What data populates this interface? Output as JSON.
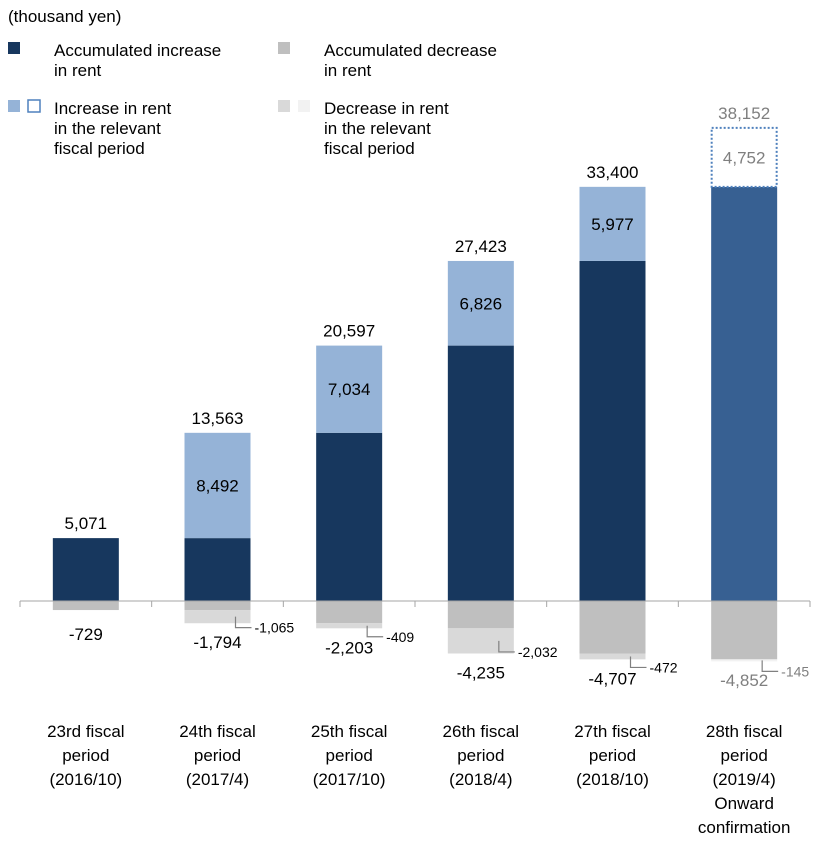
{
  "chart_data": {
    "type": "bar",
    "stacked": true,
    "unit_label": "(thousand yen)",
    "categories": [
      [
        "23rd fiscal",
        "period",
        "(2016/10)"
      ],
      [
        "24th fiscal",
        "period",
        "(2017/4)"
      ],
      [
        "25th fiscal",
        "period",
        "(2017/10)"
      ],
      [
        "26th fiscal",
        "period",
        "(2018/4)"
      ],
      [
        "27th fiscal",
        "period",
        "(2018/10)"
      ],
      [
        "28th fiscal",
        "period",
        "(2019/4)",
        "Onward",
        "confirmation"
      ]
    ],
    "legend": [
      {
        "label": [
          "Accumulated increase",
          "in rent"
        ],
        "colors": [
          "#17375e"
        ]
      },
      {
        "label": [
          "Accumulated decrease",
          "in rent"
        ],
        "colors": [
          "#bfbfbf"
        ]
      },
      {
        "label": [
          "Increase in rent",
          "in the relevant",
          "fiscal period"
        ],
        "colors": [
          "#95b3d7",
          "#ffffff"
        ],
        "second_outline": "#4f81bd"
      },
      {
        "label": [
          "Decrease in rent",
          "in the relevant",
          "fiscal period"
        ],
        "colors": [
          "#d9d9d9",
          "#f2f2f2"
        ]
      }
    ],
    "series": [
      {
        "key": "accumulated_increase",
        "values": [
          5071,
          5071,
          13563,
          20597,
          27423,
          33400
        ]
      },
      {
        "key": "period_increase",
        "values": [
          null,
          8492,
          7034,
          6826,
          5977,
          4752
        ]
      },
      {
        "key": "accumulated_decrease",
        "values": [
          -729,
          -729,
          -1794,
          -2203,
          -4235,
          -4707
        ]
      },
      {
        "key": "period_decrease",
        "values": [
          null,
          -1065,
          -409,
          -2032,
          -472,
          -145
        ]
      }
    ],
    "increase_totals": [
      5071,
      13563,
      20597,
      27423,
      33400,
      38152
    ],
    "decrease_totals": [
      -729,
      -1794,
      -2203,
      -4235,
      -4707,
      -4852
    ],
    "increase_labels": [
      "",
      "8,492",
      "7,034",
      "6,826",
      "5,977",
      "4,752"
    ],
    "decrease_labels": [
      "",
      "-1,065",
      "-409",
      "-2,032",
      "-472",
      "-145"
    ],
    "increase_total_labels": [
      "5,071",
      "13,563",
      "20,597",
      "27,423",
      "33,400",
      "38,152"
    ],
    "decrease_total_labels": [
      "-729",
      "-1,794",
      "-2,203",
      "-4,235",
      "-4,707",
      "-4,852"
    ],
    "forecast_index": 5,
    "colors": {
      "accumulated_increase": "#17375e",
      "forecast_increase": "#376092",
      "period_increase": "#95b3d7",
      "forecast_outline": "#4f81bd",
      "accumulated_decrease": "#bfbfbf",
      "period_decrease": "#d9d9d9",
      "text": "#000000",
      "forecast_text": "#7f7f7f",
      "axis": "#a6a6a6"
    }
  }
}
